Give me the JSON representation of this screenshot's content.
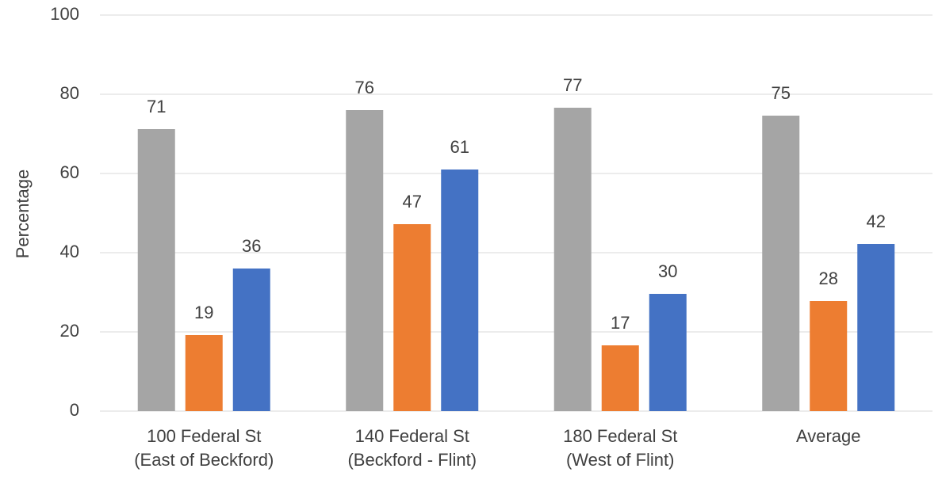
{
  "chart_data": {
    "type": "bar",
    "y_label": "Percentage",
    "categories": [
      [
        "100 Federal St",
        "(East of Beckford)"
      ],
      [
        "140 Federal St",
        "(Beckford - Flint)"
      ],
      [
        "180 Federal St",
        "(West of Flint)"
      ],
      [
        "Average"
      ]
    ],
    "series": [
      {
        "color": "#a5a5a5",
        "values": [
          71.2,
          76,
          76.6,
          74.6
        ],
        "value_labels": [
          "71",
          "76",
          "77",
          "75"
        ]
      },
      {
        "color": "#ed7d31",
        "values": [
          19.2,
          47.2,
          16.6,
          27.8
        ],
        "value_labels": [
          "19",
          "47",
          "17",
          "28"
        ]
      },
      {
        "color": "#4472c4",
        "values": [
          36,
          61,
          29.6,
          42.2
        ],
        "value_labels": [
          "36",
          "61",
          "30",
          "42"
        ]
      }
    ],
    "ylim": [
      0,
      100
    ],
    "yticks": [
      0,
      20,
      40,
      60,
      80,
      100
    ],
    "grid": true
  }
}
